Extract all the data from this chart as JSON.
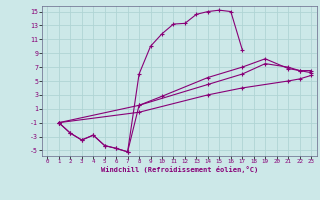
{
  "xlabel": "Windchill (Refroidissement éolien,°C)",
  "bg_color": "#cce8e8",
  "grid_color": "#b0d4d4",
  "line_color": "#880077",
  "xlim": [
    -0.5,
    23.5
  ],
  "ylim": [
    -5.8,
    15.8
  ],
  "yticks": [
    -5,
    -3,
    -1,
    1,
    3,
    5,
    7,
    9,
    11,
    13,
    15
  ],
  "xticks": [
    0,
    1,
    2,
    3,
    4,
    5,
    6,
    7,
    8,
    9,
    10,
    11,
    12,
    13,
    14,
    15,
    16,
    17,
    18,
    19,
    20,
    21,
    22,
    23
  ],
  "line1_x": [
    1,
    2,
    3,
    4,
    5,
    6,
    7,
    8,
    9,
    10,
    11,
    12,
    13,
    14,
    15,
    16,
    17
  ],
  "line1_y": [
    -1,
    -2.5,
    -3.5,
    -2.8,
    -4.3,
    -4.7,
    -5.2,
    6.0,
    10.0,
    11.8,
    13.2,
    13.3,
    14.6,
    15.0,
    15.2,
    15.0,
    9.5
  ],
  "line2_x": [
    1,
    2,
    3,
    4,
    5,
    6,
    7,
    8,
    10,
    14,
    17,
    19,
    21,
    22,
    23
  ],
  "line2_y": [
    -1,
    -2.5,
    -3.5,
    -2.8,
    -4.3,
    -4.7,
    -5.2,
    1.5,
    2.8,
    5.5,
    7.0,
    8.2,
    6.8,
    6.5,
    6.5
  ],
  "line3_x": [
    1,
    8,
    14,
    17,
    19,
    21,
    22,
    23
  ],
  "line3_y": [
    -1,
    1.5,
    4.5,
    6.0,
    7.5,
    7.0,
    6.5,
    6.2
  ],
  "line4_x": [
    1,
    8,
    14,
    17,
    21,
    22,
    23
  ],
  "line4_y": [
    -1,
    0.5,
    3.0,
    4.0,
    5.0,
    5.3,
    5.8
  ]
}
